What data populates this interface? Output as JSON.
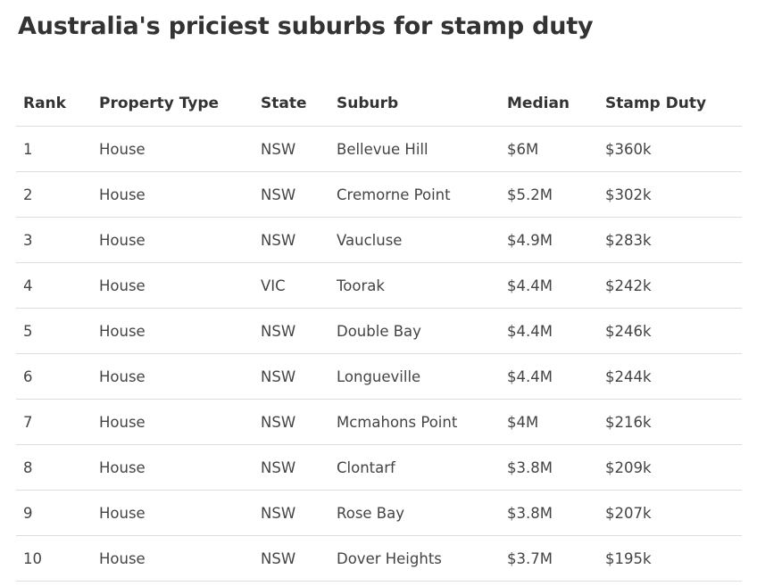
{
  "title": "Australia's priciest suburbs for stamp duty",
  "table": {
    "headers": [
      "Rank",
      "Property Type",
      "State",
      "Suburb",
      "Median",
      "Stamp Duty"
    ],
    "rows": [
      [
        "1",
        "House",
        "NSW",
        "Bellevue Hill",
        "$6M",
        "$360k"
      ],
      [
        "2",
        "House",
        "NSW",
        "Cremorne Point",
        "$5.2M",
        "$302k"
      ],
      [
        "3",
        "House",
        "NSW",
        "Vaucluse",
        "$4.9M",
        "$283k"
      ],
      [
        "4",
        "House",
        "VIC",
        "Toorak",
        "$4.4M",
        "$242k"
      ],
      [
        "5",
        "House",
        "NSW",
        "Double Bay",
        "$4.4M",
        "$246k"
      ],
      [
        "6",
        "House",
        "NSW",
        "Longueville",
        "$4.4M",
        "$244k"
      ],
      [
        "7",
        "House",
        "NSW",
        "Mcmahons Point",
        "$4M",
        "$216k"
      ],
      [
        "8",
        "House",
        "NSW",
        "Clontarf",
        "$3.8M",
        "$209k"
      ],
      [
        "9",
        "House",
        "NSW",
        "Rose Bay",
        "$3.8M",
        "$207k"
      ],
      [
        "10",
        "House",
        "NSW",
        "Dover Heights",
        "$3.7M",
        "$195k"
      ]
    ]
  }
}
